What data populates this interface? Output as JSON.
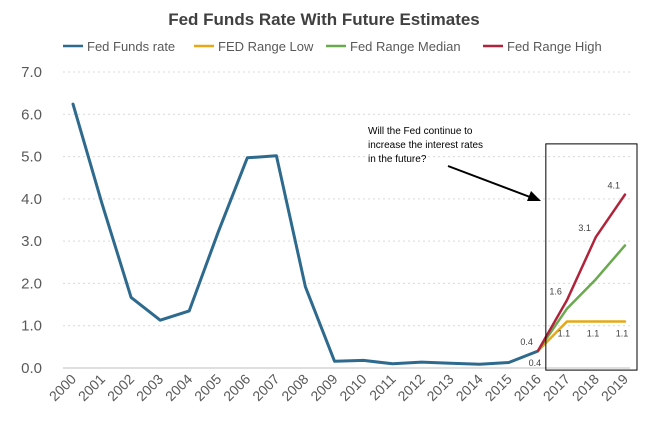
{
  "chart_data": {
    "type": "line",
    "title": "Fed Funds Rate With Future Estimates",
    "xlabel": "",
    "ylabel": "",
    "categories": [
      "2000",
      "2001",
      "2002",
      "2003",
      "2004",
      "2005",
      "2006",
      "2007",
      "2008",
      "2009",
      "2010",
      "2011",
      "2012",
      "2013",
      "2014",
      "2015",
      "2016",
      "2017",
      "2018",
      "2019"
    ],
    "ylim": [
      0,
      7
    ],
    "yticks": [
      "0.0",
      "1.0",
      "2.0",
      "3.0",
      "4.0",
      "5.0",
      "6.0",
      "7.0"
    ],
    "legend_position": "top",
    "grid": true,
    "series": [
      {
        "name": "Fed Funds rate",
        "color": "#2e6a8e",
        "values": [
          6.24,
          3.88,
          1.67,
          1.13,
          1.35,
          3.22,
          4.97,
          5.02,
          1.92,
          0.16,
          0.18,
          0.1,
          0.14,
          0.11,
          0.09,
          0.13,
          0.4,
          null,
          null,
          null
        ]
      },
      {
        "name": "FED Range Low",
        "color": "#e6a817",
        "values": [
          null,
          null,
          null,
          null,
          null,
          null,
          null,
          null,
          null,
          null,
          null,
          null,
          null,
          null,
          null,
          null,
          0.4,
          1.1,
          1.1,
          1.1
        ]
      },
      {
        "name": "Fed Range Median",
        "color": "#6aaa4f",
        "values": [
          null,
          null,
          null,
          null,
          null,
          null,
          null,
          null,
          null,
          null,
          null,
          null,
          null,
          null,
          null,
          null,
          0.4,
          1.4,
          2.1,
          2.9
        ]
      },
      {
        "name": "Fed Range High",
        "color": "#b0243b",
        "values": [
          null,
          null,
          null,
          null,
          null,
          null,
          null,
          null,
          null,
          null,
          null,
          null,
          null,
          null,
          null,
          null,
          0.4,
          1.6,
          3.1,
          4.1
        ]
      }
    ],
    "data_labels": [
      {
        "text": "0.4",
        "x": "2016",
        "y": 0.4,
        "place": "above-left"
      },
      {
        "text": "0.4",
        "x": "2016",
        "y": 0.4,
        "place": "below"
      },
      {
        "text": "1.6",
        "x": "2017",
        "y": 1.6,
        "place": "above-left"
      },
      {
        "text": "3.1",
        "x": "2018",
        "y": 3.1,
        "place": "above-left"
      },
      {
        "text": "4.1",
        "x": "2019",
        "y": 4.1,
        "place": "above-left"
      },
      {
        "text": "1.1",
        "x": "2017",
        "y": 1.1,
        "place": "below"
      },
      {
        "text": "1.1",
        "x": "2018",
        "y": 1.1,
        "place": "below"
      },
      {
        "text": "1.1",
        "x": "2019",
        "y": 1.1,
        "place": "below"
      }
    ],
    "annotation": {
      "lines": [
        "Will the Fed continue to",
        "increase the interest rates",
        "in the future?"
      ],
      "highlight_range": [
        "2016",
        "2019"
      ]
    }
  }
}
